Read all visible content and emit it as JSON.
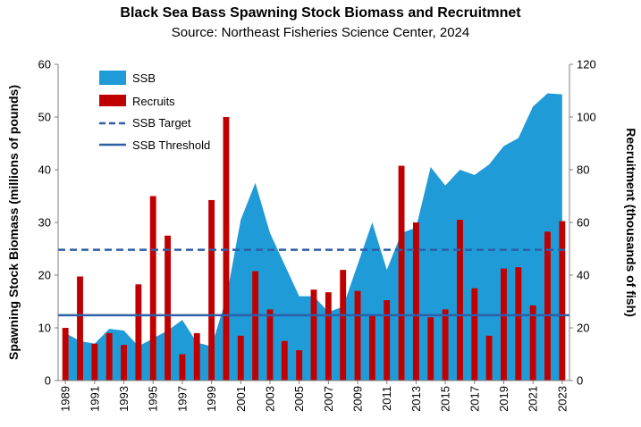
{
  "chart_data": {
    "type": "bar",
    "title": "Black Sea Bass Spawning Stock Biomass and Recruitmnet",
    "subtitle": "Source: Northeast Fisheries Science Center, 2024",
    "ylabel": "Spawning Stock Biomass (millions of pounds)",
    "y2label": "Recruitment (thousands of fish)",
    "ylim": [
      0,
      60
    ],
    "y2lim": [
      0,
      120
    ],
    "yticks": [
      "0",
      "10",
      "20",
      "30",
      "40",
      "50",
      "60"
    ],
    "y2ticks": [
      "0",
      "20",
      "40",
      "60",
      "80",
      "100",
      "120"
    ],
    "x": [
      1989,
      1990,
      1991,
      1992,
      1993,
      1994,
      1995,
      1996,
      1997,
      1998,
      1999,
      2000,
      2001,
      2002,
      2003,
      2004,
      2005,
      2006,
      2007,
      2008,
      2009,
      2010,
      2011,
      2012,
      2013,
      2014,
      2015,
      2016,
      2017,
      2018,
      2019,
      2020,
      2021,
      2022,
      2023
    ],
    "xtick_labels": [
      "1989",
      "1991",
      "1993",
      "1995",
      "1997",
      "1999",
      "2001",
      "2003",
      "2005",
      "2007",
      "2009",
      "2011",
      "2013",
      "2015",
      "2017",
      "2019",
      "2021",
      "2023"
    ],
    "series": [
      {
        "name": "SSB",
        "kind": "area",
        "axis": "left",
        "color": "#1f9bd7",
        "values": [
          9.0,
          7.5,
          7.0,
          9.8,
          9.5,
          6.5,
          8.0,
          9.5,
          11.5,
          7.2,
          6.5,
          15.5,
          30.5,
          37.5,
          28.0,
          22.0,
          16.0,
          16.0,
          13.0,
          14.0,
          22.0,
          30.0,
          21.0,
          28.0,
          29.0,
          40.5,
          37.0,
          40.0,
          39.0,
          41.0,
          44.5,
          46.0,
          52.0,
          54.5,
          54.3
        ]
      },
      {
        "name": "Recruits",
        "kind": "bar",
        "axis": "right",
        "color": "#c00000",
        "values": [
          20,
          39.5,
          14,
          18,
          13.5,
          36.5,
          70,
          55,
          10,
          18,
          68.5,
          100,
          17,
          41.5,
          27,
          15,
          11.5,
          34.5,
          33.5,
          42,
          34,
          24.5,
          30.5,
          81.5,
          60,
          24,
          27,
          61,
          35,
          17,
          42.5,
          43,
          28.5,
          56.5,
          60.5
        ]
      },
      {
        "name": "SSB Target",
        "kind": "hline",
        "axis": "left",
        "style": "dashed",
        "color": "#2e5fa8",
        "value": 24.8
      },
      {
        "name": "SSB Threshold",
        "kind": "hline",
        "axis": "left",
        "style": "solid",
        "color": "#2e5fa8",
        "value": 12.4
      }
    ],
    "legend": "top-left",
    "grid": false
  }
}
